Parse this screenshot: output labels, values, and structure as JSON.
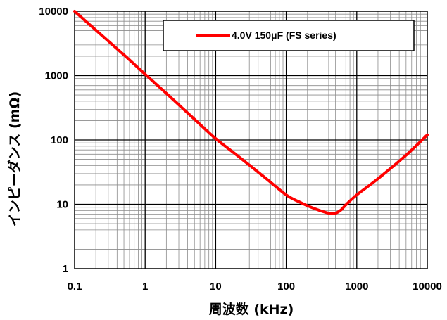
{
  "chart_data": {
    "type": "line",
    "title": "",
    "xlabel": "周波数 (kHz)",
    "ylabel": "インピーダンス (mΩ)",
    "x_scale": "log",
    "y_scale": "log",
    "xlim": [
      0.1,
      10000
    ],
    "ylim": [
      1,
      10000
    ],
    "x_tick_labels": [
      "0.1",
      "1",
      "10",
      "100",
      "1000",
      "10000"
    ],
    "y_tick_labels": [
      "1",
      "10",
      "100",
      "1000",
      "10000"
    ],
    "grid": true,
    "legend_position": "top-right",
    "series": [
      {
        "name": "4.0V 150μF (FS series)",
        "color": "#ff0000",
        "x": [
          0.1,
          0.2,
          0.5,
          1,
          2,
          5,
          10,
          20,
          50,
          100,
          150,
          200,
          300,
          400,
          500,
          600,
          700,
          1000,
          2000,
          5000,
          10000
        ],
        "y": [
          10000,
          5100,
          2100,
          1050,
          530,
          210,
          105,
          58,
          26,
          14,
          11,
          9.5,
          8,
          7.3,
          7.3,
          8.2,
          9.8,
          14,
          25,
          58,
          120
        ]
      }
    ]
  }
}
